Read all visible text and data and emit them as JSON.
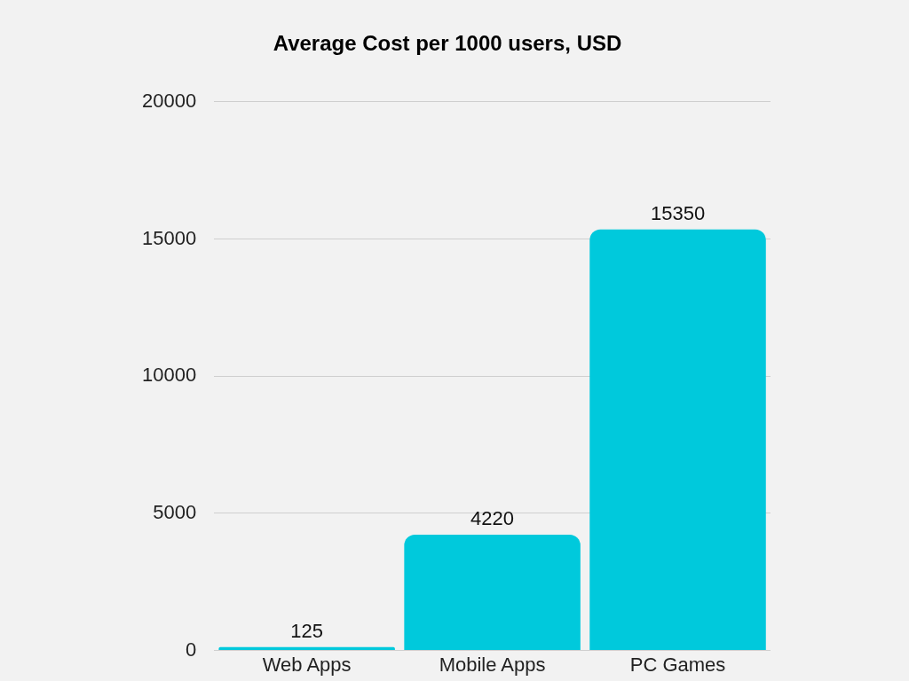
{
  "chart_data": {
    "type": "bar",
    "title": "Average Cost per 1000 users, USD",
    "categories": [
      "Web Apps",
      "Mobile Apps",
      "PC Games"
    ],
    "values": [
      125,
      4220,
      15350
    ],
    "color": "#00c9dc",
    "ylim": [
      0,
      20000
    ],
    "yticks": [
      0,
      5000,
      10000,
      15000,
      20000
    ],
    "grid": "y",
    "data_labels": true,
    "legend": false
  }
}
